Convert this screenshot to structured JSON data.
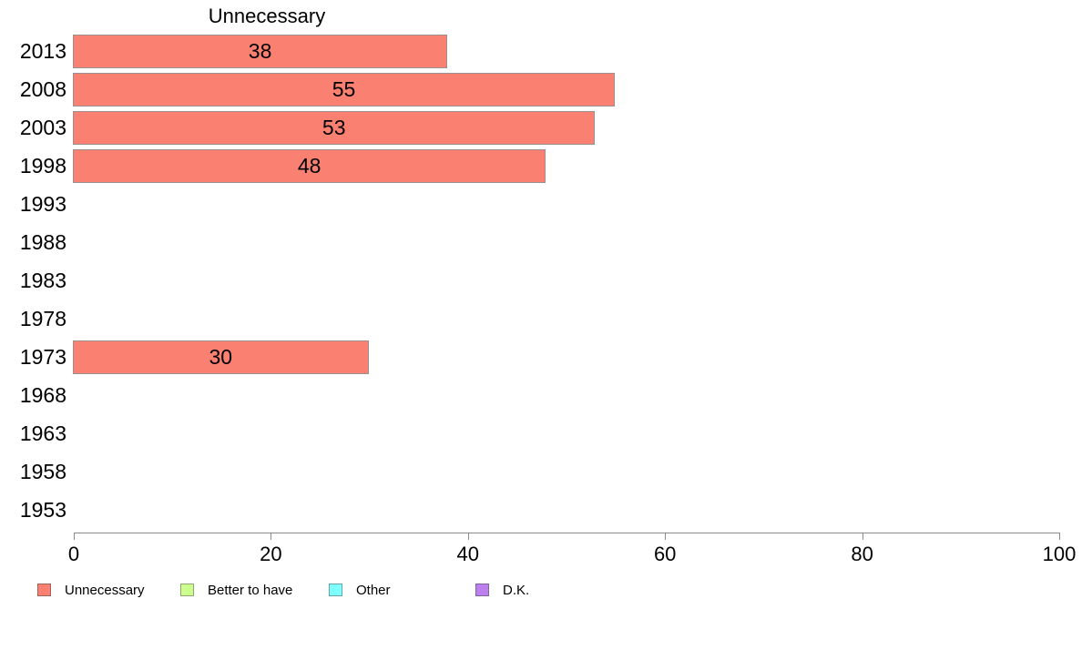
{
  "chart_data": {
    "type": "bar",
    "orientation": "horizontal",
    "title": "Unnecessary",
    "categories": [
      "2013",
      "2008",
      "2003",
      "1998",
      "1993",
      "1988",
      "1983",
      "1978",
      "1973",
      "1968",
      "1963",
      "1958",
      "1953"
    ],
    "series": [
      {
        "name": "Unnecessary",
        "color": "#fa8072",
        "border_color": "#9a908f",
        "values": [
          38,
          55,
          53,
          48,
          null,
          null,
          null,
          null,
          30,
          null,
          null,
          null,
          null
        ]
      }
    ],
    "xlabel": "",
    "ylabel": "",
    "xlim": [
      0,
      100
    ],
    "x_ticks": [
      "0",
      "20",
      "40",
      "60",
      "80",
      "100"
    ],
    "grid": "off",
    "value_labels_shown": true,
    "legend": {
      "position": "bottom",
      "items": [
        {
          "label": "Unnecessary",
          "color": "#fa8072"
        },
        {
          "label": "Better to have",
          "color": "#ccff90"
        },
        {
          "label": "Other",
          "color": "#80ffff"
        },
        {
          "label": "D.K.",
          "color": "#bb80ee"
        }
      ]
    }
  }
}
